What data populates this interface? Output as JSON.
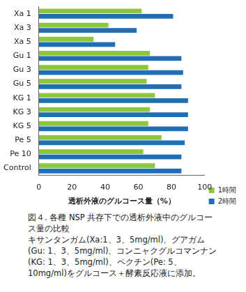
{
  "chart_data": {
    "type": "bar",
    "orientation": "horizontal",
    "categories": [
      "Xa 1",
      "Xa 3",
      "Xa 5",
      "Gu 1",
      "Gu 3",
      "Gu 5",
      "KG 1",
      "KG 3",
      "KG 5",
      "Pe 5",
      "Pe 10",
      "Control"
    ],
    "series": [
      {
        "name": "1時間",
        "color": "#8dc63f",
        "values": [
          62,
          42,
          33,
          67,
          66,
          65,
          70,
          67,
          66,
          74,
          63,
          70
        ]
      },
      {
        "name": "2時間",
        "color": "#1f6fb8",
        "values": [
          81,
          59,
          46,
          86,
          87,
          86,
          90,
          90,
          90,
          88,
          86,
          86
        ]
      }
    ],
    "x_label": "透析外液のグルコース量（%）",
    "xlim": [
      0,
      100
    ],
    "xticks": [
      0,
      20,
      40,
      60,
      80,
      100
    ],
    "grid": false,
    "legend": "lower right",
    "annotations": [
      "図４. 各種 NSP 共存下での透析外液中のグルコース量の比較",
      "キサンタンガム(Xa:1、3、5mg/ml)、グアガム(Gu: 1、3、5mg/ml)、コンニャクグルコマンナン(KG: 1、3、5mg/ml)、ペクチン(Pe: 5、10mg/ml)をグルコース＋酵素反応液に添加。"
    ]
  }
}
